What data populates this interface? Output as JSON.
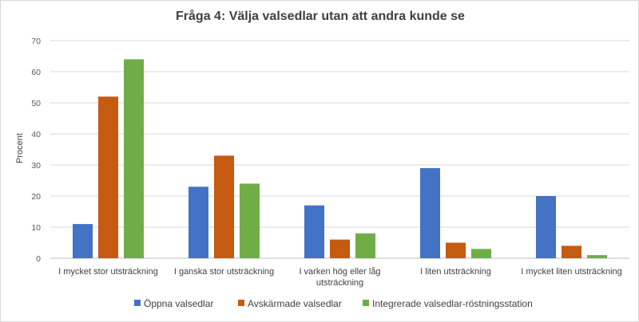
{
  "chart_data": {
    "type": "bar",
    "title": "Fråga 4:  Välja valsedlar utan att andra kunde se",
    "xlabel": "",
    "ylabel": "Procent",
    "ylim": [
      0,
      70
    ],
    "yticks": [
      0,
      10,
      20,
      30,
      40,
      50,
      60,
      70
    ],
    "grid": true,
    "legend_position": "bottom",
    "categories": [
      [
        "I mycket stor utsträckning"
      ],
      [
        "I ganska stor utsträckning"
      ],
      [
        "I varken hög eller låg",
        "utsträckning"
      ],
      [
        "I liten utsträckning"
      ],
      [
        "I mycket liten utsträckning"
      ]
    ],
    "series": [
      {
        "name": "Öppna valsedlar",
        "color": "#4472c4",
        "values": [
          11,
          23,
          17,
          29,
          20
        ]
      },
      {
        "name": "Avskärmade valsedlar",
        "color": "#c55a11",
        "values": [
          52,
          33,
          6,
          5,
          4
        ]
      },
      {
        "name": "Integrerade valsedlar-röstningsstation",
        "color": "#70ad47",
        "values": [
          64,
          24,
          8,
          3,
          1
        ]
      }
    ]
  }
}
